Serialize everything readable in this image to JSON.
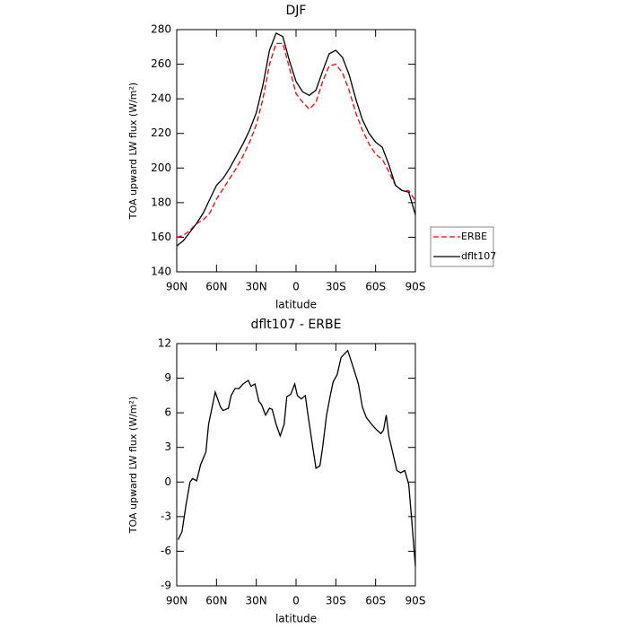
{
  "chart_data": [
    {
      "type": "line",
      "title": "DJF",
      "xlabel": "latitude",
      "ylabel": "TOA upward LW flux (W/m²)",
      "xlim": [
        90,
        -90
      ],
      "ylim": [
        140,
        280
      ],
      "xticks": [
        {
          "value": 90,
          "label": "90N"
        },
        {
          "value": 60,
          "label": "60N"
        },
        {
          "value": 30,
          "label": "30N"
        },
        0,
        {
          "value": -30,
          "label": "30S"
        },
        {
          "value": -60,
          "label": "60S"
        },
        {
          "value": -90,
          "label": "90S"
        }
      ],
      "yticks": [
        140,
        160,
        180,
        200,
        220,
        240,
        260,
        280
      ],
      "legend": "right",
      "x": [
        90,
        85,
        80,
        75,
        70,
        65,
        60,
        55,
        50,
        45,
        40,
        35,
        30,
        25,
        20,
        15,
        10,
        5,
        0,
        -5,
        -10,
        -15,
        -20,
        -25,
        -30,
        -35,
        -40,
        -45,
        -50,
        -55,
        -60,
        -65,
        -70,
        -75,
        -80,
        -85,
        -90
      ],
      "series": [
        {
          "name": "ERBE",
          "color": "#ff0000",
          "style": "dashed",
          "values": [
            160,
            161,
            164,
            168,
            170,
            174,
            182,
            188,
            194,
            200,
            207,
            215,
            225,
            240,
            260,
            272,
            272,
            258,
            243,
            238,
            234,
            238,
            250,
            259,
            260,
            255,
            245,
            232,
            222,
            214,
            208,
            205,
            198,
            190,
            187,
            187,
            181
          ]
        },
        {
          "name": "dflt107",
          "color": "#000000",
          "style": "solid",
          "values": [
            155,
            158,
            163,
            168,
            174,
            182,
            190,
            194,
            200,
            207,
            214,
            222,
            232,
            248,
            268,
            278,
            276,
            262,
            250,
            244,
            242,
            245,
            256,
            266,
            268,
            264,
            254,
            240,
            228,
            220,
            215,
            212,
            202,
            190,
            187,
            186,
            173
          ]
        }
      ]
    },
    {
      "type": "line",
      "title": "dflt107 - ERBE",
      "xlabel": "latitude",
      "ylabel": "TOA upward LW flux (W/m²)",
      "xlim": [
        90,
        -90
      ],
      "ylim": [
        -9,
        12
      ],
      "xticks": [
        {
          "value": 90,
          "label": "90N"
        },
        {
          "value": 60,
          "label": "60N"
        },
        {
          "value": 30,
          "label": "30N"
        },
        0,
        {
          "value": -30,
          "label": "30S"
        },
        {
          "value": -60,
          "label": "60S"
        },
        {
          "value": -90,
          "label": "90S"
        }
      ],
      "yticks": [
        -9,
        -6,
        -3,
        0,
        3,
        6,
        9,
        12
      ],
      "x": [
        89,
        86,
        83,
        80,
        78,
        75,
        72,
        68,
        66,
        61,
        57,
        55,
        51,
        49,
        46,
        43,
        40,
        36,
        34,
        31,
        28,
        26,
        23,
        20,
        18,
        15,
        12,
        9,
        7,
        4,
        1,
        -1,
        -4,
        -7,
        -9,
        -12,
        -15,
        -18,
        -20,
        -23,
        -26,
        -28,
        -31,
        -34,
        -39,
        -43,
        -47,
        -50,
        -53,
        -57,
        -61,
        -64,
        -66,
        -68,
        -70,
        -73,
        -76,
        -79,
        -82,
        -85,
        -87,
        -90
      ],
      "series": [
        {
          "name": "dflt107 - ERBE",
          "color": "#000000",
          "style": "solid",
          "values": [
            -5,
            -4.3,
            -2,
            0,
            0.3,
            0.1,
            1.5,
            2.6,
            5,
            7.8,
            6.5,
            6.2,
            6.4,
            7.5,
            8.1,
            8.1,
            8.5,
            8.8,
            8.3,
            8.5,
            7,
            6.7,
            5.8,
            6.4,
            6.3,
            5,
            4,
            5,
            7.4,
            7.6,
            8.5,
            7.5,
            7.2,
            7.5,
            5.8,
            3.5,
            1.2,
            1.4,
            3,
            5.8,
            7.6,
            8.7,
            9.3,
            10.8,
            11.4,
            10,
            8.5,
            6.5,
            5.6,
            5,
            4.5,
            4.2,
            4.5,
            5.8,
            4,
            2.5,
            1,
            0.8,
            1,
            -0.2,
            -3,
            -7.3
          ]
        }
      ]
    }
  ]
}
